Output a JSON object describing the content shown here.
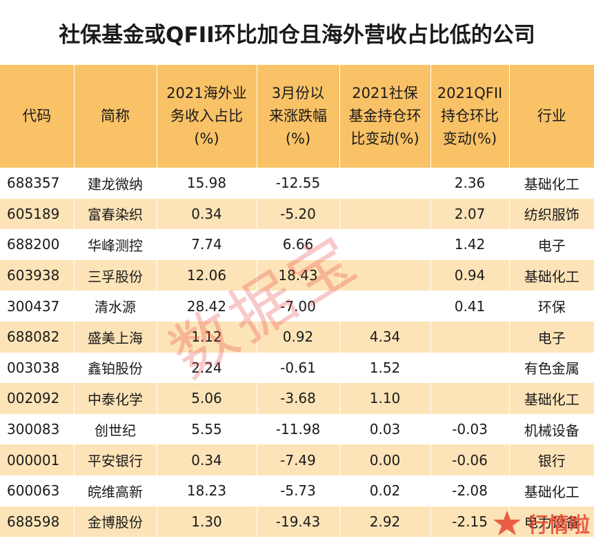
{
  "title": "社保基金或QFII环比加仓且海外营收占比低的公司",
  "table": {
    "headers": [
      "代码",
      "简称",
      "2021海外业务收入占比(%)",
      "3月份以来涨跌幅(%)",
      "2021社保基金持仓环比变动(%)",
      "2021QFII持仓环比变动(%)",
      "行业"
    ],
    "rows": [
      [
        "688357",
        "建龙微纳",
        "15.98",
        "-12.55",
        "",
        "2.36",
        "基础化工"
      ],
      [
        "605189",
        "富春染织",
        "0.34",
        "-5.20",
        "",
        "2.07",
        "纺织服饰"
      ],
      [
        "688200",
        "华峰测控",
        "7.74",
        "6.66",
        "",
        "1.42",
        "电子"
      ],
      [
        "603938",
        "三孚股份",
        "12.06",
        "18.43",
        "",
        "0.94",
        "基础化工"
      ],
      [
        "300437",
        "清水源",
        "28.42",
        "-7.00",
        "",
        "0.41",
        "环保"
      ],
      [
        "688082",
        "盛美上海",
        "1.12",
        "0.92",
        "4.34",
        "",
        "电子"
      ],
      [
        "003038",
        "鑫铂股份",
        "2.24",
        "-0.61",
        "1.52",
        "",
        "有色金属"
      ],
      [
        "002092",
        "中泰化学",
        "5.06",
        "-3.68",
        "1.10",
        "",
        "基础化工"
      ],
      [
        "300083",
        "创世纪",
        "5.55",
        "-11.98",
        "0.03",
        "-0.03",
        "机械设备"
      ],
      [
        "000001",
        "平安银行",
        "0.34",
        "-7.49",
        "0.00",
        "-0.06",
        "银行"
      ],
      [
        "600063",
        "皖维高新",
        "18.23",
        "-5.73",
        "0.02",
        "-2.08",
        "基础化工"
      ],
      [
        "688598",
        "金博股份",
        "1.30",
        "-19.43",
        "2.92",
        "-2.15",
        "电力设备"
      ]
    ]
  },
  "watermark": "数据宝",
  "logo": {
    "text": "行情啦",
    "icon": "star-logo-icon"
  },
  "colors": {
    "header_bg": "#f9c266",
    "row_alt_bg": "#fde4b8",
    "row_bg": "#ffffff",
    "watermark": "#e53c3c"
  }
}
